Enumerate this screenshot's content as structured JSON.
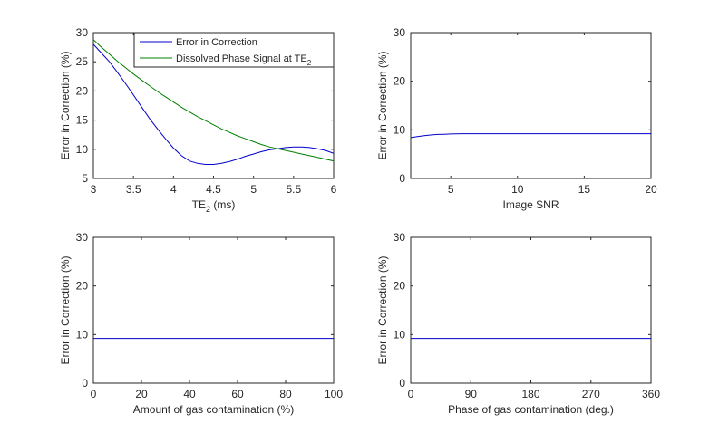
{
  "colors": {
    "blue": "#0000cc",
    "green": "#008000",
    "axis": "#262626"
  },
  "chart_data": [
    {
      "type": "line",
      "xlabel": "TE",
      "xlabel_sub": "2",
      "xlabel_suffix": " (ms)",
      "ylabel": "Error in Correction (%)",
      "xlim": [
        3,
        6
      ],
      "ylim": [
        5,
        30
      ],
      "xticks": [
        "3",
        "3.5",
        "4",
        "4.5",
        "5",
        "5.5",
        "6"
      ],
      "yticks": [
        "5",
        "10",
        "15",
        "20",
        "25",
        "30"
      ],
      "legend": {
        "position": "top-right",
        "entries": [
          {
            "label": "Error in Correction",
            "sub": "",
            "color": "blue"
          },
          {
            "label": "Dissolved Phase Signal at TE",
            "sub": "2",
            "color": "green"
          }
        ]
      },
      "series": [
        {
          "name": "Error in Correction",
          "color": "blue",
          "x": [
            3.0,
            3.1,
            3.2,
            3.3,
            3.4,
            3.5,
            3.6,
            3.7,
            3.8,
            3.9,
            4.0,
            4.1,
            4.2,
            4.3,
            4.4,
            4.5,
            4.6,
            4.7,
            4.8,
            4.9,
            5.0,
            5.1,
            5.2,
            5.3,
            5.4,
            5.5,
            5.6,
            5.7,
            5.8,
            5.9,
            6.0
          ],
          "y": [
            28.0,
            26.5,
            25.0,
            23.2,
            21.3,
            19.3,
            17.3,
            15.3,
            13.5,
            11.8,
            10.2,
            8.9,
            8.0,
            7.6,
            7.4,
            7.4,
            7.6,
            7.9,
            8.3,
            8.8,
            9.2,
            9.6,
            9.9,
            10.1,
            10.3,
            10.4,
            10.4,
            10.3,
            10.1,
            9.8,
            9.3
          ]
        },
        {
          "name": "Dissolved Phase Signal at TE2",
          "color": "green",
          "x": [
            3.0,
            3.1,
            3.2,
            3.3,
            3.4,
            3.5,
            3.6,
            3.7,
            3.8,
            3.9,
            4.0,
            4.1,
            4.2,
            4.3,
            4.4,
            4.5,
            4.6,
            4.7,
            4.8,
            4.9,
            5.0,
            5.1,
            5.2,
            5.3,
            5.4,
            5.5,
            5.6,
            5.7,
            5.8,
            5.9,
            6.0
          ],
          "y": [
            28.8,
            27.5,
            26.3,
            25.1,
            24.0,
            22.9,
            21.9,
            20.9,
            19.9,
            19.0,
            18.1,
            17.2,
            16.4,
            15.6,
            14.9,
            14.2,
            13.5,
            12.9,
            12.3,
            11.8,
            11.3,
            10.8,
            10.4,
            10.1,
            9.8,
            9.5,
            9.2,
            8.9,
            8.6,
            8.3,
            8.0
          ]
        }
      ]
    },
    {
      "type": "line",
      "xlabel": "Image SNR",
      "ylabel": "Error in Correction (%)",
      "xlim": [
        2,
        20
      ],
      "ylim": [
        0,
        30
      ],
      "xticks": [
        "5",
        "10",
        "15",
        "20"
      ],
      "xtick_values": [
        5,
        10,
        15,
        20
      ],
      "yticks": [
        "0",
        "10",
        "20",
        "30"
      ],
      "series": [
        {
          "name": "Error in Correction",
          "color": "blue",
          "x": [
            2,
            2.5,
            3,
            3.5,
            4,
            4.5,
            5,
            6,
            8,
            10,
            12,
            15,
            18,
            20
          ],
          "y": [
            8.4,
            8.6,
            8.8,
            8.95,
            9.05,
            9.1,
            9.15,
            9.2,
            9.2,
            9.2,
            9.2,
            9.2,
            9.2,
            9.2
          ]
        }
      ]
    },
    {
      "type": "line",
      "xlabel": "Amount of gas contamination (%)",
      "ylabel": "Error in Correction (%)",
      "xlim": [
        0,
        100
      ],
      "ylim": [
        0,
        30
      ],
      "xticks": [
        "0",
        "20",
        "40",
        "60",
        "80",
        "100"
      ],
      "xtick_values": [
        0,
        20,
        40,
        60,
        80,
        100
      ],
      "yticks": [
        "0",
        "10",
        "20",
        "30"
      ],
      "series": [
        {
          "name": "Error in Correction",
          "color": "blue",
          "x": [
            0,
            100
          ],
          "y": [
            9.2,
            9.2
          ]
        }
      ]
    },
    {
      "type": "line",
      "xlabel": "Phase of gas contamination (deg.)",
      "ylabel": "Error in Correction (%)",
      "xlim": [
        0,
        360
      ],
      "ylim": [
        0,
        30
      ],
      "xticks": [
        "0",
        "90",
        "180",
        "270",
        "360"
      ],
      "xtick_values": [
        0,
        90,
        180,
        270,
        360
      ],
      "yticks": [
        "0",
        "10",
        "20",
        "30"
      ],
      "series": [
        {
          "name": "Error in Correction",
          "color": "blue",
          "x": [
            0,
            360
          ],
          "y": [
            9.2,
            9.2
          ]
        }
      ]
    }
  ]
}
